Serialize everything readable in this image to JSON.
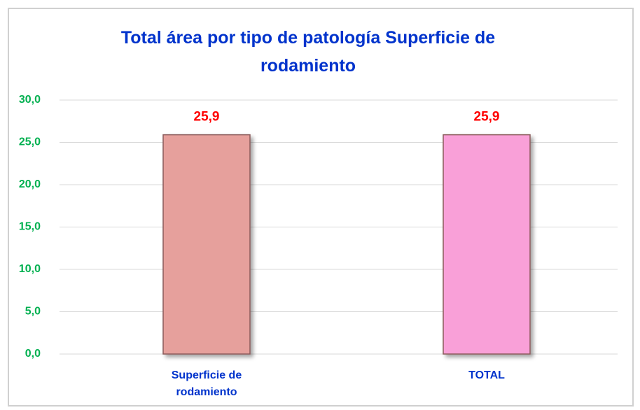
{
  "chart_data": {
    "type": "bar",
    "title": "Total área por tipo de patología Superficie de rodamiento",
    "categories": [
      "Superficie de rodamiento",
      "TOTAL"
    ],
    "values": [
      25.9,
      25.9
    ],
    "value_labels": [
      "25,9",
      "25,9"
    ],
    "colors": [
      "#e6a09c",
      "#f9a0d8"
    ],
    "ylim": [
      0,
      30
    ],
    "yticks": [
      {
        "value": 0,
        "label": "0,0"
      },
      {
        "value": 5,
        "label": "5,0"
      },
      {
        "value": 10,
        "label": "10,0"
      },
      {
        "value": 15,
        "label": "15,0"
      },
      {
        "value": 20,
        "label": "20,0"
      },
      {
        "value": 25,
        "label": "25,0"
      },
      {
        "value": 30,
        "label": "30,0"
      }
    ],
    "grid": true
  }
}
